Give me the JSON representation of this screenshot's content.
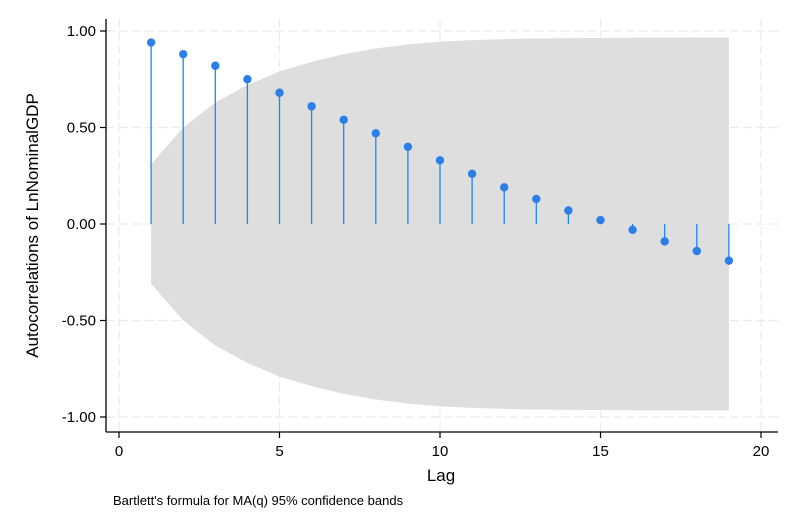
{
  "chart_data": {
    "type": "line",
    "subtype": "autocorrelogram",
    "title": "",
    "xlabel": "Lag",
    "ylabel": "Autocorrelations of LnNominalGDP",
    "note": "Bartlett's formula for MA(q) 95% confidence bands",
    "xlim": [
      0,
      20
    ],
    "ylim": [
      -1.0,
      1.0
    ],
    "x_ticks": [
      0,
      5,
      10,
      15,
      20
    ],
    "y_ticks": [
      -1.0,
      -0.5,
      0.0,
      0.5,
      1.0
    ],
    "y_tick_labels": [
      "-1.00",
      "-0.50",
      "0.00",
      "0.50",
      "1.00"
    ],
    "x_tick_labels": [
      "0",
      "5",
      "10",
      "15",
      "20"
    ],
    "grid": true,
    "legend": "none",
    "series": [
      {
        "x": [
          1,
          2,
          3,
          4,
          5,
          6,
          7,
          8,
          9,
          10,
          11,
          12,
          13,
          14,
          15,
          16,
          17,
          18,
          19
        ],
        "values": [
          0.94,
          0.88,
          0.82,
          0.75,
          0.68,
          0.61,
          0.54,
          0.47,
          0.4,
          0.33,
          0.26,
          0.19,
          0.13,
          0.07,
          0.02,
          -0.03,
          -0.09,
          -0.14,
          -0.19
        ]
      }
    ],
    "confidence_band": {
      "x": [
        1,
        2,
        3,
        4,
        5,
        6,
        7,
        8,
        9,
        10,
        11,
        12,
        13,
        14,
        15,
        16,
        17,
        18,
        19
      ],
      "upper": [
        0.31,
        0.5,
        0.63,
        0.72,
        0.79,
        0.84,
        0.88,
        0.91,
        0.93,
        0.945,
        0.953,
        0.958,
        0.961,
        0.963,
        0.964,
        0.965,
        0.965,
        0.966,
        0.966
      ],
      "lower": [
        -0.31,
        -0.5,
        -0.63,
        -0.72,
        -0.79,
        -0.84,
        -0.88,
        -0.91,
        -0.93,
        -0.945,
        -0.953,
        -0.958,
        -0.961,
        -0.963,
        -0.964,
        -0.965,
        -0.965,
        -0.966,
        -0.966
      ]
    },
    "colors": {
      "series": "#1a85ff",
      "marker": "#2a7fe8",
      "band": "#dedede",
      "grid": "#eaeaea",
      "axis": "#000000"
    }
  }
}
